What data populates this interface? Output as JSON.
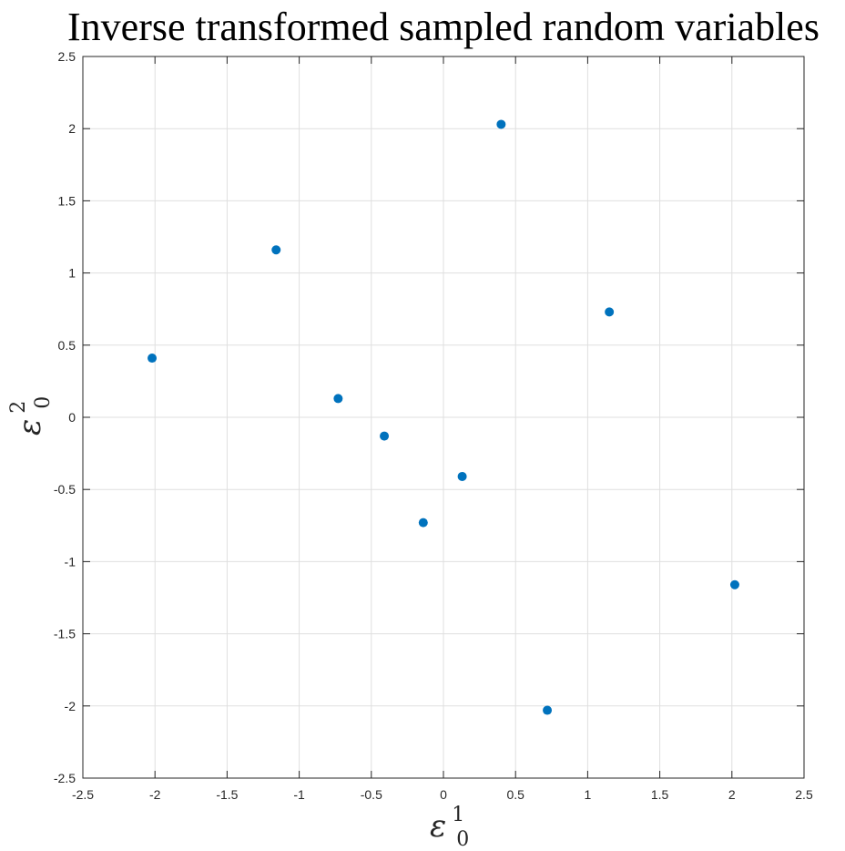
{
  "chart_data": {
    "type": "scatter",
    "title": "Inverse transformed sampled random variables",
    "xlabel": {
      "symbol": "ε",
      "sup": "1",
      "sub": "0"
    },
    "ylabel": {
      "symbol": "ε",
      "sup": "2",
      "sub": "0"
    },
    "xlim": [
      -2.5,
      2.5
    ],
    "ylim": [
      -2.5,
      2.5
    ],
    "xticks": [
      "-2.5",
      "-2",
      "-1.5",
      "-1",
      "-0.5",
      "0",
      "0.5",
      "1",
      "1.5",
      "2",
      "2.5"
    ],
    "yticks": [
      "-2.5",
      "-2",
      "-1.5",
      "-1",
      "-0.5",
      "0",
      "0.5",
      "1",
      "1.5",
      "2",
      "2.5"
    ],
    "grid": true,
    "marker_color": "#0072BD",
    "series": [
      {
        "points": [
          {
            "x": -2.02,
            "y": 0.41
          },
          {
            "x": -1.16,
            "y": 1.16
          },
          {
            "x": -0.73,
            "y": 0.13
          },
          {
            "x": -0.41,
            "y": -0.13
          },
          {
            "x": -0.14,
            "y": -0.73
          },
          {
            "x": 0.13,
            "y": -0.41
          },
          {
            "x": 0.4,
            "y": 2.03
          },
          {
            "x": 0.72,
            "y": -2.03
          },
          {
            "x": 1.15,
            "y": 0.73
          },
          {
            "x": 2.02,
            "y": -1.16
          }
        ]
      }
    ]
  }
}
